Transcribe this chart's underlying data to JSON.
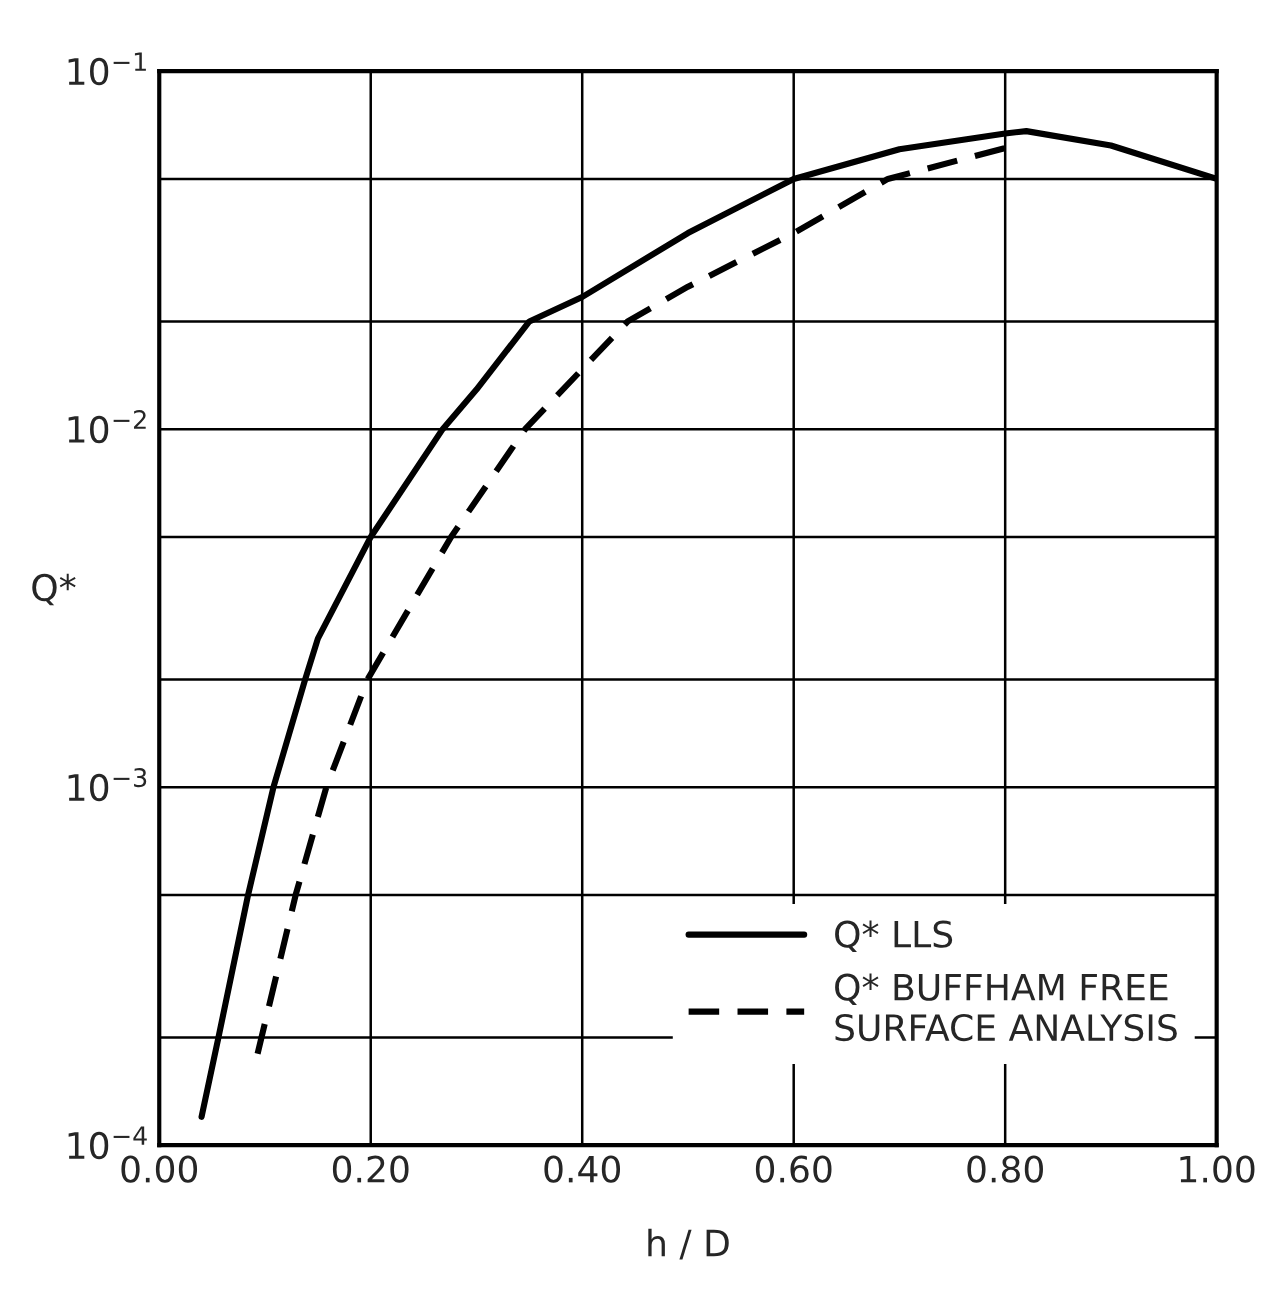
{
  "chart_data": {
    "type": "line",
    "xlabel": "h / D",
    "ylabel": "Q*",
    "log": "y",
    "grid": true,
    "legend": "bottom right",
    "xlim": [
      0,
      1
    ],
    "xticks": [
      {
        "value": 0,
        "label": "0.00"
      },
      {
        "value": 0.2,
        "label": "0.20"
      },
      {
        "value": 0.4,
        "label": "0.40"
      },
      {
        "value": 0.6,
        "label": "0.60"
      },
      {
        "value": 0.8,
        "label": "0.80"
      },
      {
        "value": 1,
        "label": "1.00"
      }
    ],
    "ylim": [
      0.0001,
      0.1
    ],
    "yticks": [
      {
        "value": 0.0001,
        "label": "10$^{−4}$"
      },
      {
        "value": 0.0002,
        "label": null
      },
      {
        "value": 0.0005,
        "label": null
      },
      {
        "value": 0.001,
        "label": "10$^{−3}$"
      },
      {
        "value": 0.002,
        "label": null
      },
      {
        "value": 0.005,
        "label": null
      },
      {
        "value": 0.01,
        "label": "10$^{−2}$"
      },
      {
        "value": 0.02,
        "label": null
      },
      {
        "value": 0.05,
        "label": null
      },
      {
        "value": 0.1,
        "label": "10$^{−1}$"
      }
    ],
    "series": [
      {
        "name": "Q* LLS",
        "color": "#000000",
        "line_style": "solid",
        "x": [
          0.04,
          0.056,
          0.084,
          0.108,
          0.138,
          0.15,
          0.2,
          0.268,
          0.3,
          0.35,
          0.4,
          0.5,
          0.6,
          0.7,
          0.8,
          0.82,
          0.9,
          1.0
        ],
        "values": [
          0.00012,
          0.0002,
          0.0005,
          0.001,
          0.002,
          0.0026,
          0.005,
          0.01,
          0.0129,
          0.02,
          0.0234,
          0.0353,
          0.05,
          0.0605,
          0.067,
          0.068,
          0.062,
          0.05
        ]
      },
      {
        "name": "Q* BUFFHAM FREE\nSURFACE ANALYSIS",
        "color": "#000000",
        "line_style": "dashed",
        "x": [
          0.093,
          0.129,
          0.158,
          0.197,
          0.276,
          0.346,
          0.443,
          0.5,
          0.6,
          0.689,
          0.8
        ],
        "values": [
          0.00018,
          0.0005,
          0.001,
          0.002,
          0.005,
          0.01,
          0.02,
          0.025,
          0.0353,
          0.05,
          0.061
        ]
      }
    ]
  }
}
